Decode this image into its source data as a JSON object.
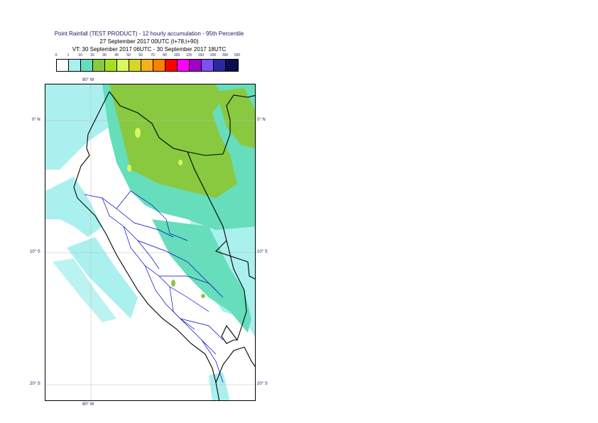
{
  "title": {
    "line1": "Point Rainfall (TEST PRODUCT) - 12 hourly accumulation - 95th Percentile",
    "line2": "27 September 2017 00UTC (t+78,t+90)",
    "line3": "VT: 30 September 2017 06UTC - 30 September 2017 18UTC"
  },
  "colorbar": {
    "ticks": [
      "0",
      "1",
      "10",
      "20",
      "30",
      "40",
      "50",
      "60",
      "70",
      "80",
      "100",
      "125",
      "150",
      "200",
      "300",
      "500"
    ],
    "colors": [
      "#ffffff",
      "#aaf0ee",
      "#66ddbb",
      "#88c940",
      "#a6e01c",
      "#d8f860",
      "#d6d62a",
      "#f5b01b",
      "#ff8000",
      "#ff0000",
      "#ff00ff",
      "#a000c8",
      "#7b50f5",
      "#2a2aa0",
      "#0c0c50"
    ]
  },
  "map": {
    "lon_label_top": "80° W",
    "lon_label_bottom": "80° W",
    "lat_labels": [
      "0° N",
      "10° S",
      "20° S"
    ],
    "colors": {
      "light_rain": "#aaf0ee",
      "moderate_rain": "#66ddbb",
      "heavy_rain": "#88c940",
      "very_heavy": "#d8f860",
      "coast": "#000000",
      "admin_border": "#0000cc"
    }
  }
}
